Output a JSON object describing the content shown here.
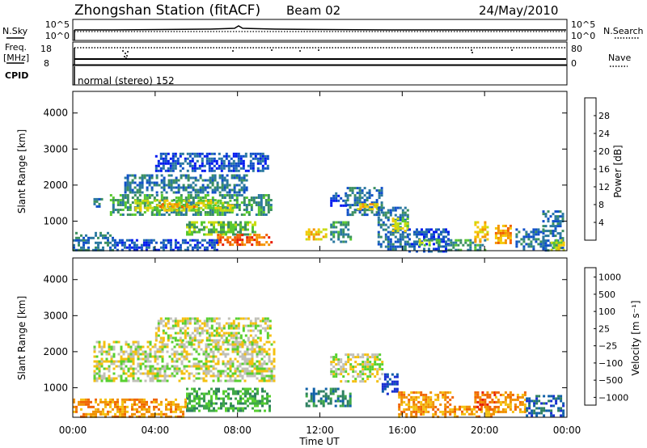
{
  "header": {
    "title": "Zhongshan Station (fitACF)",
    "beam": "Beam 02",
    "date": "24/May/2010"
  },
  "summary_panels": {
    "nsky_label": "N.Sky",
    "nsearch_label": "N.Search",
    "freq_label_line1": "Freq.",
    "freq_label_line2": "[MHz]",
    "nave_label": "Nave",
    "cpid_label": "CPID",
    "cpid_text": "normal (stereo) 152",
    "noise_ticks": [
      "10^5",
      "10^0"
    ],
    "freq_ticks": [
      "18",
      "8"
    ],
    "nave_ticks": [
      "80",
      "0"
    ]
  },
  "chart_data": [
    {
      "type": "heatmap",
      "panel": "power",
      "ylabel": "Slant Range [km]",
      "xlabel": "Time UT",
      "x_ticks": [
        "00:00",
        "04:00",
        "08:00",
        "12:00",
        "16:00",
        "20:00",
        "00:00"
      ],
      "y_ticks": [
        1000,
        2000,
        3000,
        4000
      ],
      "ylim": [
        180,
        4600
      ],
      "colorbar_label": "Power [dB]",
      "colorbar_ticks": [
        "4",
        "8",
        "12",
        "16",
        "20",
        "24",
        "28"
      ],
      "colors": [
        "#0018f0",
        "#1050c8",
        "#2a78a0",
        "#3c9060",
        "#58c830",
        "#c8dc10",
        "#f4c800",
        "#f49400",
        "#f05c00",
        "#e81c00"
      ],
      "regions": [
        {
          "t0": 1.0,
          "t1": 1.4,
          "r0": 1420,
          "r1": 1640,
          "level": 2
        },
        {
          "t0": 1.8,
          "t1": 9.6,
          "r0": 1200,
          "r1": 1750,
          "level": 3
        },
        {
          "t0": 3.0,
          "t1": 7.8,
          "r0": 1300,
          "r1": 1600,
          "level": 5
        },
        {
          "t0": 4.2,
          "t1": 6.0,
          "r0": 1400,
          "r1": 1500,
          "level": 7
        },
        {
          "t0": 2.5,
          "t1": 8.5,
          "r0": 1800,
          "r1": 2300,
          "level": 2
        },
        {
          "t0": 4.0,
          "t1": 9.5,
          "r0": 2400,
          "r1": 2900,
          "level": 1
        },
        {
          "t0": 5.5,
          "t1": 8.8,
          "r0": 600,
          "r1": 1000,
          "level": 4
        },
        {
          "t0": 7.0,
          "t1": 9.6,
          "r0": 350,
          "r1": 650,
          "level": 8
        },
        {
          "t0": 0.0,
          "t1": 2.0,
          "r0": 180,
          "r1": 700,
          "level": 2
        },
        {
          "t0": 2.0,
          "t1": 7.0,
          "r0": 180,
          "r1": 500,
          "level": 1
        },
        {
          "t0": 11.3,
          "t1": 12.3,
          "r0": 500,
          "r1": 800,
          "level": 6
        },
        {
          "t0": 12.5,
          "t1": 13.5,
          "r0": 400,
          "r1": 1000,
          "level": 3
        },
        {
          "t0": 12.5,
          "t1": 13.3,
          "r0": 1400,
          "r1": 1800,
          "level": 1
        },
        {
          "t0": 13.3,
          "t1": 15.0,
          "r0": 1200,
          "r1": 1950,
          "level": 2
        },
        {
          "t0": 13.8,
          "t1": 14.8,
          "r0": 1300,
          "r1": 1500,
          "level": 6
        },
        {
          "t0": 14.8,
          "t1": 16.3,
          "r0": 200,
          "r1": 1400,
          "level": 2
        },
        {
          "t0": 15.5,
          "t1": 16.3,
          "r0": 700,
          "r1": 1100,
          "level": 5
        },
        {
          "t0": 16.3,
          "t1": 18.2,
          "r0": 180,
          "r1": 800,
          "level": 1
        },
        {
          "t0": 16.8,
          "t1": 17.8,
          "r0": 300,
          "r1": 500,
          "level": 4
        },
        {
          "t0": 18.2,
          "t1": 20.0,
          "r0": 180,
          "r1": 500,
          "level": 3
        },
        {
          "t0": 19.5,
          "t1": 20.2,
          "r0": 400,
          "r1": 1000,
          "level": 6
        },
        {
          "t0": 20.5,
          "t1": 21.3,
          "r0": 400,
          "r1": 900,
          "level": 7
        },
        {
          "t0": 21.5,
          "t1": 22.8,
          "r0": 200,
          "r1": 800,
          "level": 2
        },
        {
          "t0": 22.8,
          "t1": 23.8,
          "r0": 200,
          "r1": 1300,
          "level": 2
        },
        {
          "t0": 23.2,
          "t1": 23.8,
          "r0": 200,
          "r1": 500,
          "level": 5
        }
      ]
    },
    {
      "type": "heatmap",
      "panel": "velocity",
      "ylabel": "Slant Range [km]",
      "xlabel": "Time UT",
      "x_ticks": [
        "00:00",
        "04:00",
        "08:00",
        "12:00",
        "16:00",
        "20:00",
        "00:00"
      ],
      "y_ticks": [
        1000,
        2000,
        3000,
        4000
      ],
      "ylim": [
        180,
        4600
      ],
      "colorbar_label": "Velocity [m s⁻¹]",
      "colorbar_ticks": [
        "1000",
        "500",
        "100",
        "25",
        "−25",
        "−100",
        "−500",
        "−1000"
      ],
      "colors": [
        "#1830d0",
        "#1060a8",
        "#2e8060",
        "#40a848",
        "#58d030",
        "#c0c0b8",
        "#f4c010",
        "#f09000",
        "#f06400",
        "#e81c00"
      ],
      "regions": [
        {
          "t0": 1.0,
          "t1": 9.8,
          "r0": 1200,
          "r1": 2300,
          "level": 5
        },
        {
          "t0": 4.0,
          "t1": 9.6,
          "r0": 2300,
          "r1": 2950,
          "level": 5
        },
        {
          "t0": 12.5,
          "t1": 15.0,
          "r0": 1200,
          "r1": 1950,
          "level": 5
        },
        {
          "t0": 5.5,
          "t1": 9.6,
          "r0": 350,
          "r1": 1000,
          "level": 3
        },
        {
          "t0": 0.0,
          "t1": 5.5,
          "r0": 180,
          "r1": 700,
          "level": 7
        },
        {
          "t0": 11.3,
          "t1": 13.5,
          "r0": 500,
          "r1": 1000,
          "level": 2
        },
        {
          "t0": 15.0,
          "t1": 15.8,
          "r0": 800,
          "r1": 1400,
          "level": 0
        },
        {
          "t0": 15.8,
          "t1": 18.5,
          "r0": 180,
          "r1": 900,
          "level": 7
        },
        {
          "t0": 18.5,
          "t1": 20.5,
          "r0": 180,
          "r1": 500,
          "level": 7
        },
        {
          "t0": 19.5,
          "t1": 20.5,
          "r0": 400,
          "r1": 900,
          "level": 8
        },
        {
          "t0": 20.5,
          "t1": 22.0,
          "r0": 300,
          "r1": 900,
          "level": 7
        },
        {
          "t0": 22.0,
          "t1": 23.8,
          "r0": 200,
          "r1": 800,
          "level": 1
        }
      ]
    }
  ]
}
